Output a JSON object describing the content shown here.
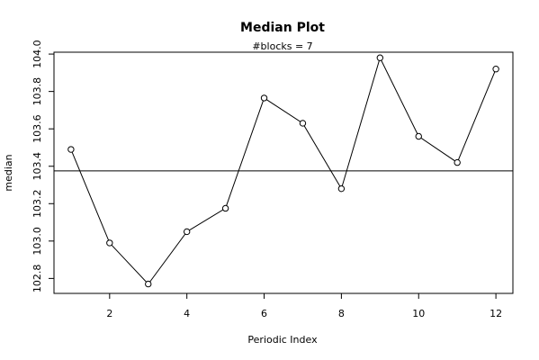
{
  "chart_data": {
    "type": "line",
    "title": "Median Plot",
    "subtitle": "#blocks =  7",
    "xlabel": "Periodic Index",
    "ylabel": "median",
    "x": [
      1,
      2,
      3,
      4,
      5,
      6,
      7,
      8,
      9,
      10,
      11,
      12
    ],
    "series": [
      {
        "values": [
          103.49,
          102.99,
          102.77,
          103.05,
          103.175,
          103.765,
          103.63,
          103.28,
          103.98,
          103.56,
          103.42,
          103.92
        ]
      }
    ],
    "reference_line": 103.375,
    "xlim": [
      0.56,
      12.44
    ],
    "ylim": [
      102.72,
      104.01
    ],
    "xticks": [
      2,
      4,
      6,
      8,
      10,
      12
    ],
    "yticks": [
      "102.8",
      "103.0",
      "103.2",
      "103.4",
      "103.6",
      "103.8",
      "104.0"
    ],
    "markers": "open-circle",
    "grid": false,
    "line_color": "#000000"
  }
}
